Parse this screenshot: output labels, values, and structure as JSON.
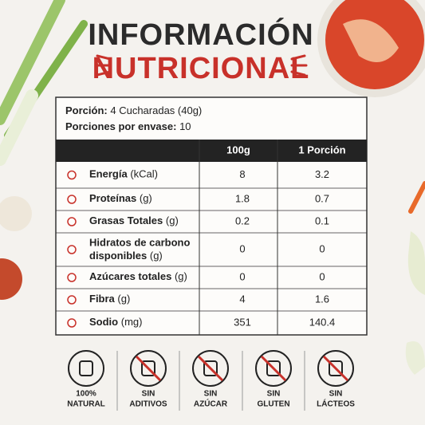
{
  "header": {
    "title_line1": "INFORMACIÓN",
    "title_line2": "NUTRICIONAL"
  },
  "table": {
    "serving_label": "Porción:",
    "serving_value": "4 Cucharadas (40g)",
    "servings_label": "Porciones por envase:",
    "servings_value": "10",
    "columns": [
      "100g",
      "1 Porción"
    ],
    "rows": [
      {
        "name": "Energía",
        "unit": "(kCal)",
        "per_100g": "8",
        "per_portion": "3.2"
      },
      {
        "name": "Proteínas",
        "unit": "(g)",
        "per_100g": "1.8",
        "per_portion": "0.7"
      },
      {
        "name": "Grasas Totales",
        "unit": "(g)",
        "per_100g": "0.2",
        "per_portion": "0.1"
      },
      {
        "name": "Hidratos de carbono",
        "name2": "disponibles",
        "unit": "(g)",
        "per_100g": "0",
        "per_portion": "0"
      },
      {
        "name": "Azúcares totales",
        "unit": "(g)",
        "per_100g": "0",
        "per_portion": "0"
      },
      {
        "name": "Fibra",
        "unit": "(g)",
        "per_100g": "4",
        "per_portion": "1.6"
      },
      {
        "name": "Sodio",
        "unit": "(mg)",
        "per_100g": "351",
        "per_portion": "140.4"
      }
    ]
  },
  "badges": [
    {
      "line1": "100%",
      "line2": "NATURAL"
    },
    {
      "line1": "SIN",
      "line2": "ADITIVOS"
    },
    {
      "line1": "SIN",
      "line2": "AZÚCAR"
    },
    {
      "line1": "SIN",
      "line2": "GLUTEN"
    },
    {
      "line1": "SIN",
      "line2": "LÁCTEOS"
    }
  ]
}
